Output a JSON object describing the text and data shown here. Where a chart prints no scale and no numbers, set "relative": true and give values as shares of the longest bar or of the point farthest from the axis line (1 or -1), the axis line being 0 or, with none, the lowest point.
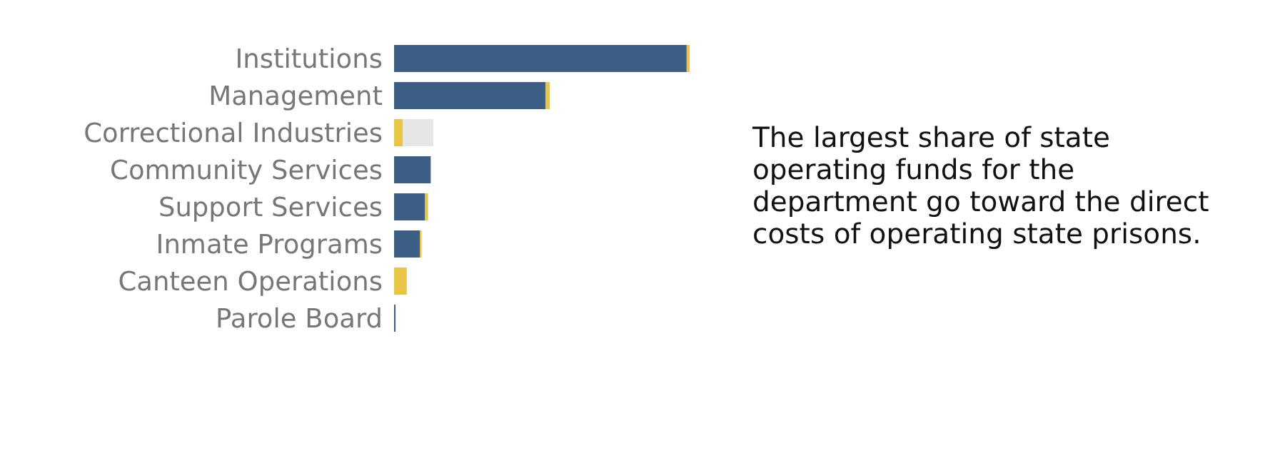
{
  "chart_data": {
    "type": "bar",
    "orientation": "horizontal",
    "stacked": true,
    "relative": true,
    "categories": [
      "Institutions",
      "Management",
      "Correctional Industries",
      "Community Services",
      "Support Services",
      "Inmate Programs",
      "Canteen Operations",
      "Parole Board"
    ],
    "series": [
      {
        "color": "#3d5f85",
        "values": [
          0.99,
          0.513,
          0,
          0.124,
          0.105,
          0.087,
          0,
          0.005
        ]
      },
      {
        "color": "#e8c547",
        "values": [
          0.01,
          0.014,
          0.03,
          0,
          0.01,
          0.006,
          0.043,
          0
        ]
      },
      {
        "color": "#e6e6e6",
        "values": [
          0,
          0,
          0.103,
          0,
          0,
          0,
          0,
          0
        ]
      }
    ],
    "annotations": [
      "The largest share of state operating funds for the department go toward the direct costs of operating state prisons."
    ]
  }
}
